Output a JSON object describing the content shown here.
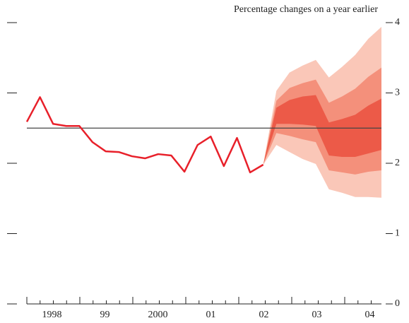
{
  "chart_data": {
    "type": "fan",
    "title": "Percentage changes on a year earlier",
    "x_labels": [
      "1998",
      "99",
      "2000",
      "01",
      "02",
      "03",
      "04"
    ],
    "ylim": [
      0,
      4
    ],
    "yticks": [
      0,
      1,
      2,
      3,
      4
    ],
    "reference_line": 2.5,
    "series": [
      {
        "color": "#e8202a",
        "values": [
          2.59,
          2.94,
          2.56,
          2.53,
          2.53,
          2.3,
          2.17,
          2.16,
          2.1,
          2.07,
          2.13,
          2.11,
          1.88,
          2.26,
          2.38,
          1.96,
          2.36,
          1.87,
          1.98,
          null,
          null,
          null,
          null,
          null,
          null,
          null,
          null,
          null
        ]
      }
    ],
    "fan": [
      {
        "color": "#fac7b8",
        "upper": [
          null,
          null,
          null,
          null,
          null,
          null,
          null,
          null,
          null,
          null,
          null,
          null,
          null,
          null,
          null,
          null,
          null,
          null,
          1.98,
          3.03,
          3.29,
          3.39,
          3.47,
          3.22,
          3.37,
          3.54,
          3.77,
          3.94
        ],
        "lower": [
          null,
          null,
          null,
          null,
          null,
          null,
          null,
          null,
          null,
          null,
          null,
          null,
          null,
          null,
          null,
          null,
          null,
          null,
          1.98,
          2.26,
          2.16,
          2.06,
          1.99,
          1.63,
          1.58,
          1.52,
          1.52,
          1.51
        ]
      },
      {
        "color": "#f4907b",
        "upper": [
          null,
          null,
          null,
          null,
          null,
          null,
          null,
          null,
          null,
          null,
          null,
          null,
          null,
          null,
          null,
          null,
          null,
          null,
          1.98,
          2.89,
          3.07,
          3.14,
          3.19,
          2.86,
          2.95,
          3.06,
          3.23,
          3.36
        ],
        "lower": [
          null,
          null,
          null,
          null,
          null,
          null,
          null,
          null,
          null,
          null,
          null,
          null,
          null,
          null,
          null,
          null,
          null,
          null,
          1.98,
          2.43,
          2.39,
          2.34,
          2.3,
          1.9,
          1.87,
          1.84,
          1.88,
          1.9
        ]
      },
      {
        "color": "#ec5a48",
        "upper": [
          null,
          null,
          null,
          null,
          null,
          null,
          null,
          null,
          null,
          null,
          null,
          null,
          null,
          null,
          null,
          null,
          null,
          null,
          1.98,
          2.79,
          2.9,
          2.95,
          2.97,
          2.58,
          2.63,
          2.69,
          2.82,
          2.92
        ],
        "lower": [
          null,
          null,
          null,
          null,
          null,
          null,
          null,
          null,
          null,
          null,
          null,
          null,
          null,
          null,
          null,
          null,
          null,
          null,
          1.98,
          2.56,
          2.56,
          2.55,
          2.53,
          2.11,
          2.09,
          2.09,
          2.14,
          2.19
        ]
      }
    ]
  }
}
